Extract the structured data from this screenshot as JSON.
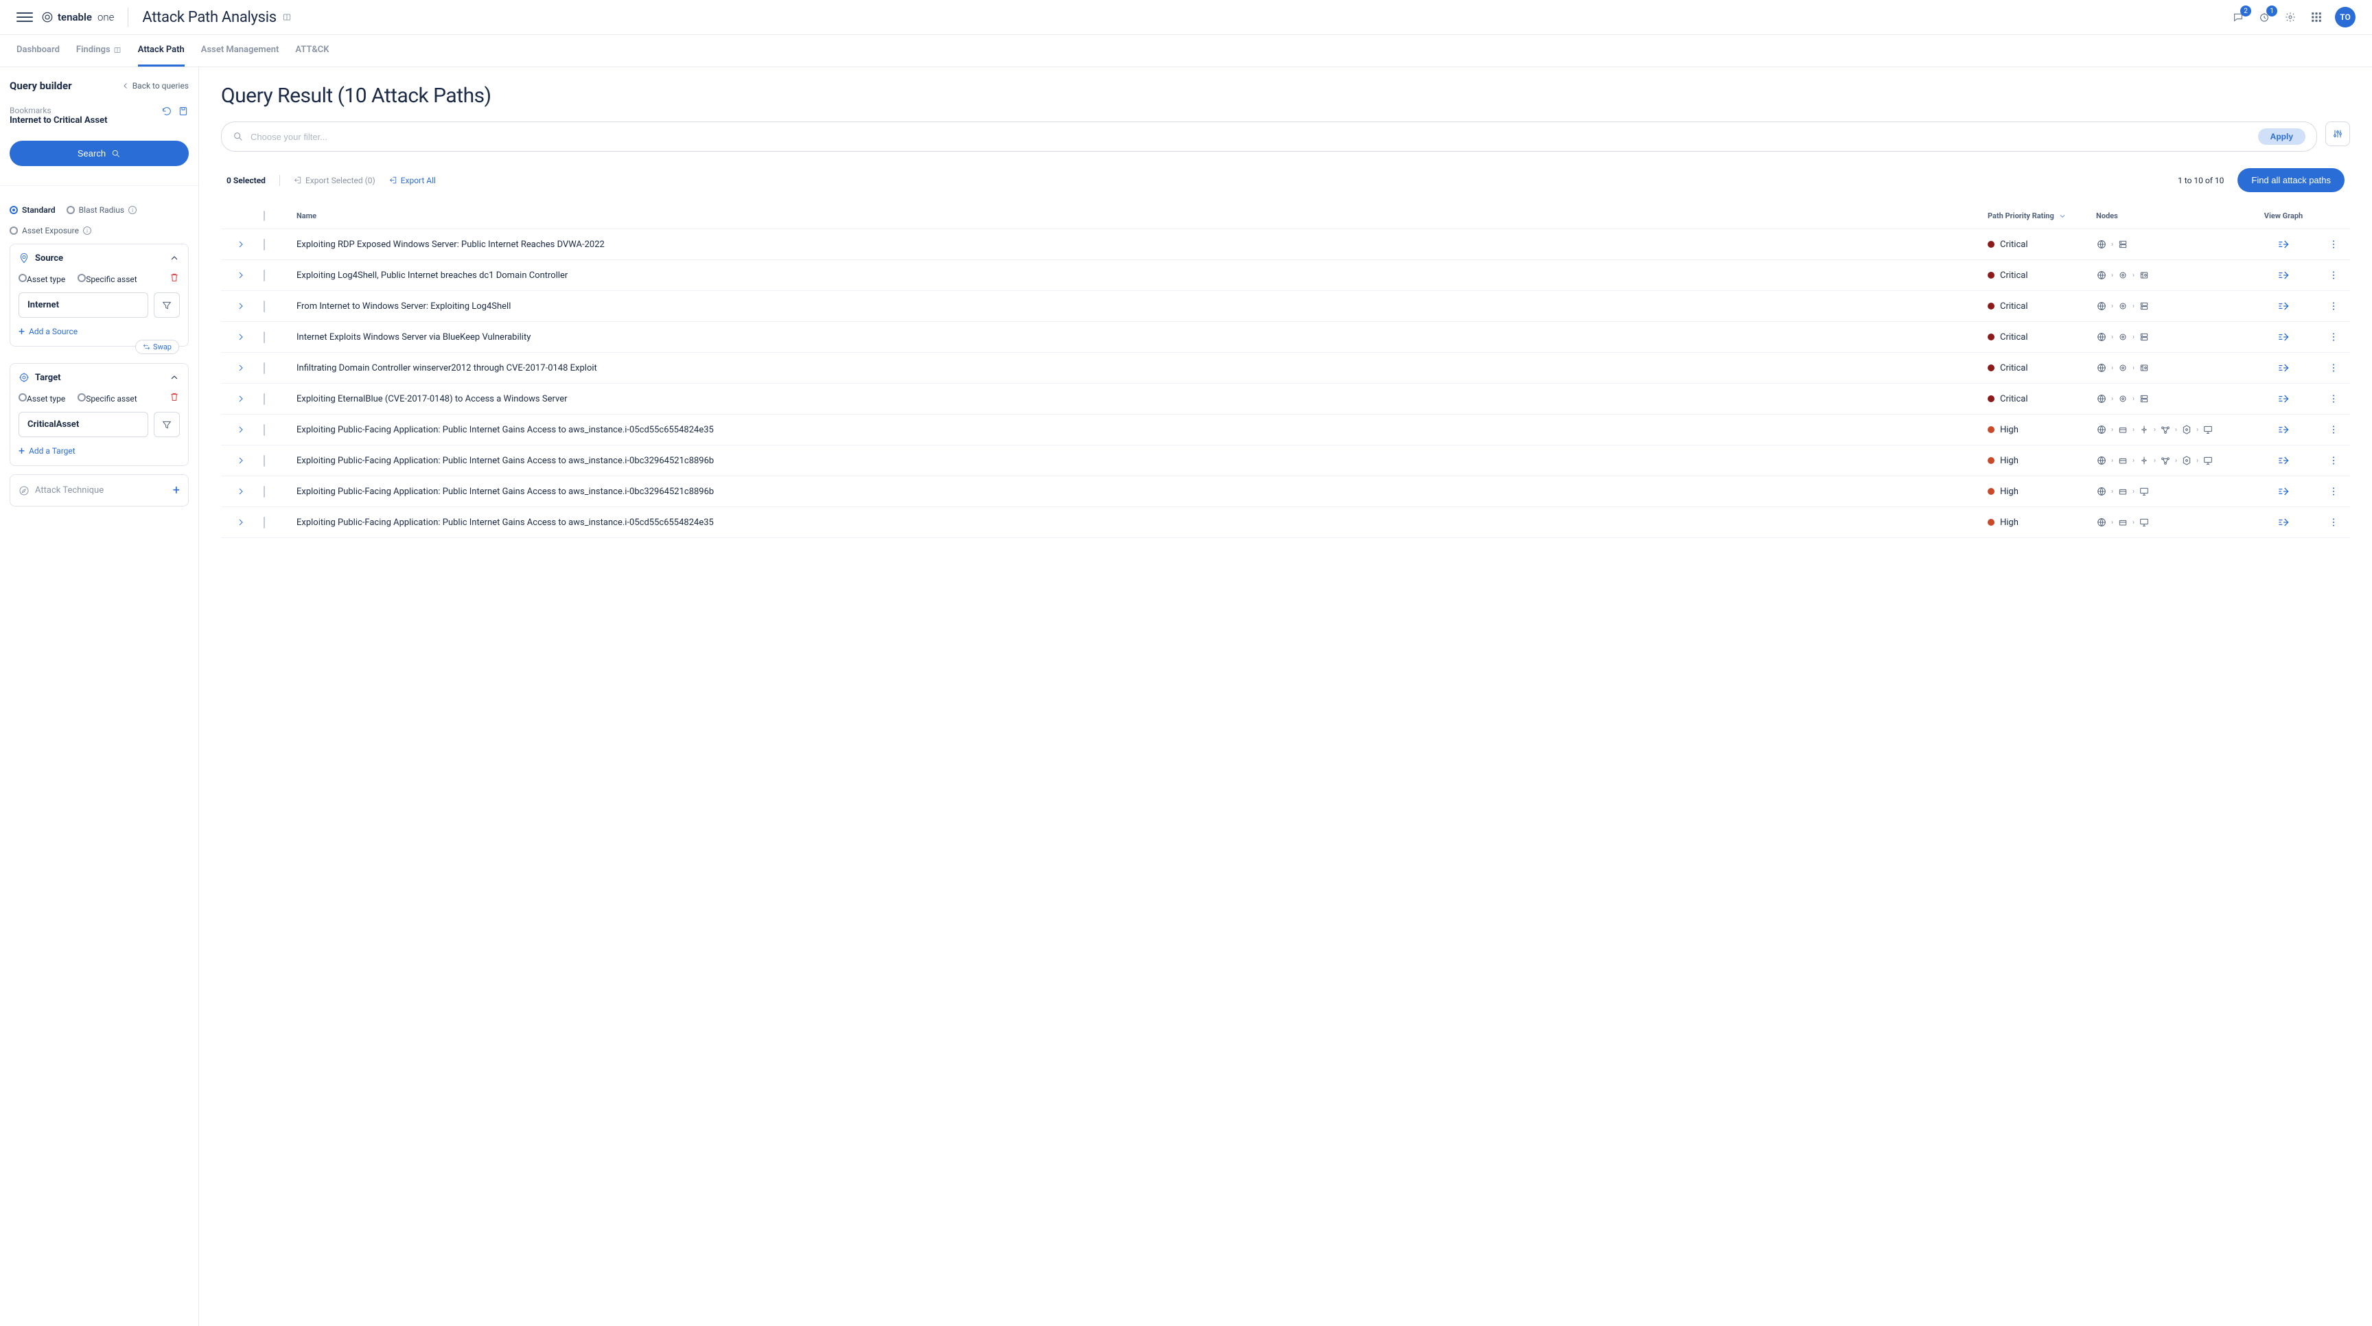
{
  "header": {
    "brand": "tenable",
    "brand_suffix": "one",
    "page_title": "Attack Path Analysis",
    "chat_badge": "2",
    "clock_badge": "1",
    "avatar": "TO"
  },
  "nav_tabs": [
    {
      "label": "Dashboard",
      "active": false,
      "icon": null
    },
    {
      "label": "Findings",
      "active": false,
      "icon": "book"
    },
    {
      "label": "Attack Path",
      "active": true,
      "icon": null
    },
    {
      "label": "Asset Management",
      "active": false,
      "icon": null
    },
    {
      "label": "ATT&CK",
      "active": false,
      "icon": null
    }
  ],
  "sidebar": {
    "title": "Query builder",
    "back": "Back to queries",
    "bookmarks_label": "Bookmarks",
    "bookmark_value": "Internet to Critical Asset",
    "search_label": "Search",
    "modes": [
      {
        "label": "Standard",
        "selected": true,
        "info": false
      },
      {
        "label": "Blast Radius",
        "selected": false,
        "info": true
      },
      {
        "label": "Asset Exposure",
        "selected": false,
        "info": true
      }
    ],
    "source": {
      "title": "Source",
      "type_options": [
        {
          "label": "Asset type",
          "selected": true
        },
        {
          "label": "Specific asset",
          "selected": false
        }
      ],
      "value": "Internet",
      "add_label": "Add a Source"
    },
    "swap_label": "Swap",
    "target": {
      "title": "Target",
      "type_options": [
        {
          "label": "Asset type",
          "selected": true
        },
        {
          "label": "Specific asset",
          "selected": false
        }
      ],
      "value": "CriticalAsset",
      "add_label": "Add a Target"
    },
    "attack_technique": "Attack Technique"
  },
  "content": {
    "title": "Query Result (10 Attack Paths)",
    "filter_placeholder": "Choose your filter...",
    "apply_label": "Apply",
    "selected_count": "0 Selected",
    "export_selected": "Export Selected (0)",
    "export_all": "Export All",
    "pagination": "1 to 10 of 10",
    "find_all": "Find all attack paths",
    "columns": {
      "name": "Name",
      "rating": "Path Priority Rating",
      "nodes": "Nodes",
      "graph": "View Graph"
    },
    "rating_colors": {
      "Critical": "#8b1a1a",
      "High": "#c94a2a"
    },
    "rows": [
      {
        "name": "Exploiting RDP Exposed Windows Server: Public Internet Reaches DVWA-2022",
        "rating": "Critical",
        "nodes": [
          "globe",
          "server"
        ]
      },
      {
        "name": "Exploiting Log4Shell, Public Internet breaches dc1 Domain Controller",
        "rating": "Critical",
        "nodes": [
          "globe",
          "circle",
          "domain"
        ]
      },
      {
        "name": "From Internet to Windows Server: Exploiting Log4Shell",
        "rating": "Critical",
        "nodes": [
          "globe",
          "circle",
          "server"
        ]
      },
      {
        "name": "Internet Exploits Windows Server via BlueKeep Vulnerability",
        "rating": "Critical",
        "nodes": [
          "globe",
          "circle",
          "server"
        ]
      },
      {
        "name": "Infiltrating Domain Controller winserver2012 through CVE-2017-0148 Exploit",
        "rating": "Critical",
        "nodes": [
          "globe",
          "circle",
          "domain"
        ]
      },
      {
        "name": "Exploiting EternalBlue (CVE-2017-0148) to Access a Windows Server",
        "rating": "Critical",
        "nodes": [
          "globe",
          "circle",
          "server"
        ]
      },
      {
        "name": "Exploiting Public-Facing Application: Public Internet Gains Access to aws_instance.i-05cd55c6554824e35",
        "rating": "High",
        "nodes": [
          "globe",
          "box",
          "route",
          "net",
          "hex",
          "monitor"
        ]
      },
      {
        "name": "Exploiting Public-Facing Application: Public Internet Gains Access to aws_instance.i-0bc32964521c8896b",
        "rating": "High",
        "nodes": [
          "globe",
          "box",
          "route",
          "net",
          "hex",
          "monitor"
        ]
      },
      {
        "name": "Exploiting Public-Facing Application: Public Internet Gains Access to aws_instance.i-0bc32964521c8896b",
        "rating": "High",
        "nodes": [
          "globe",
          "box",
          "monitor"
        ]
      },
      {
        "name": "Exploiting Public-Facing Application: Public Internet Gains Access to aws_instance.i-05cd55c6554824e35",
        "rating": "High",
        "nodes": [
          "globe",
          "box",
          "monitor"
        ]
      }
    ]
  }
}
